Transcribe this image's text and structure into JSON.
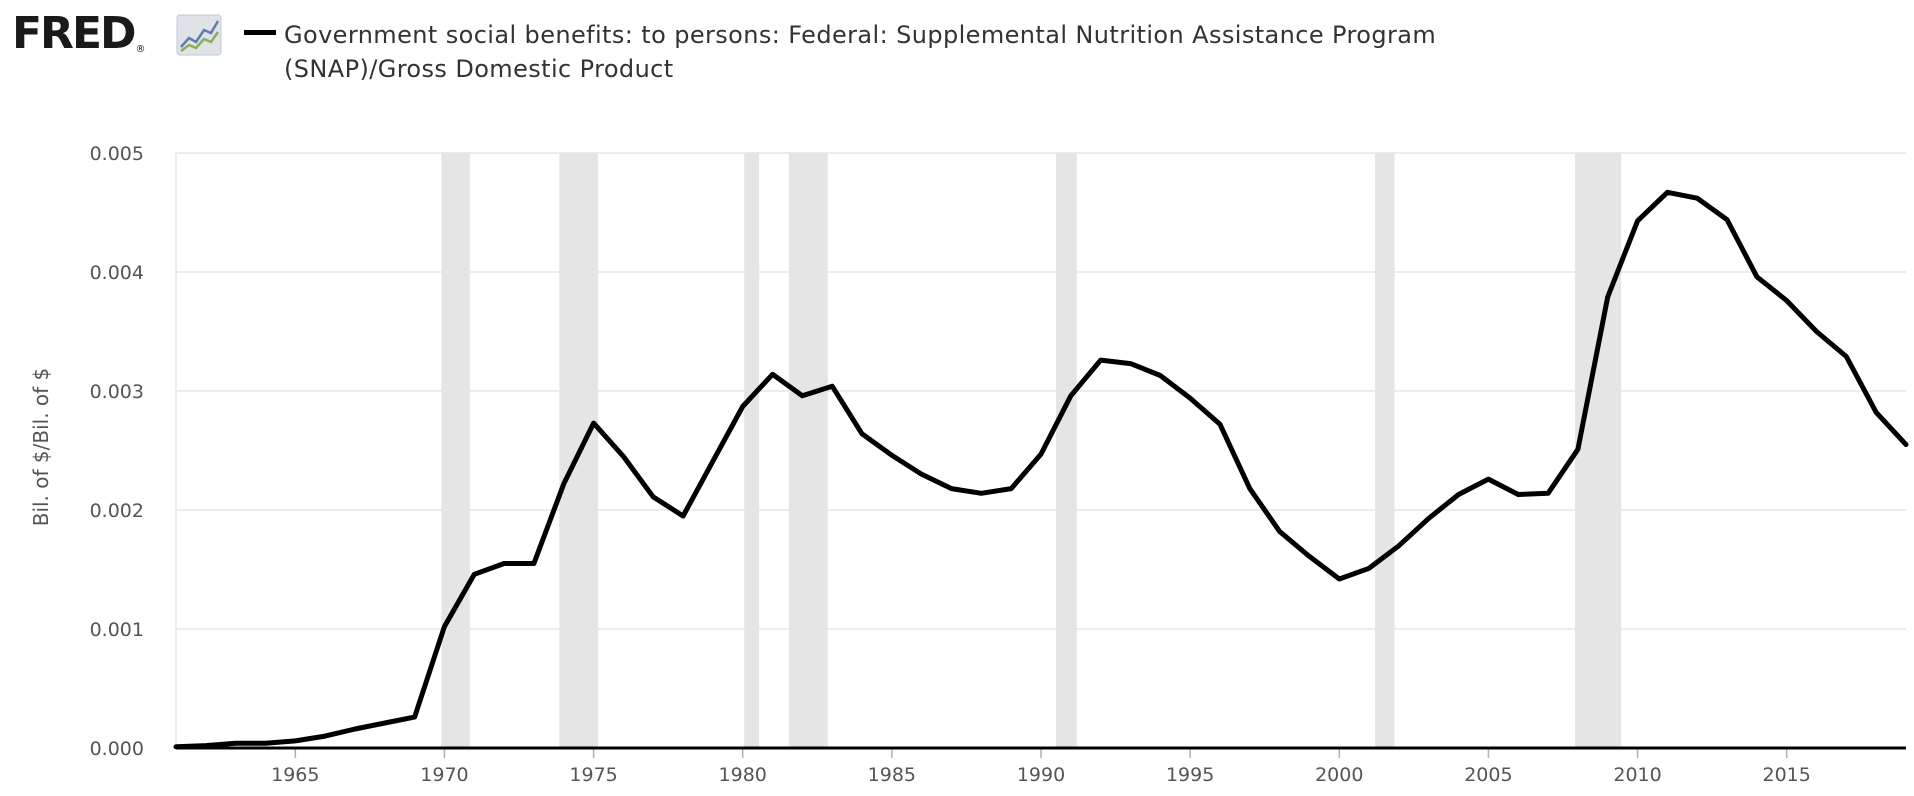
{
  "brand": {
    "name": "FRED",
    "registered": "®",
    "icon": "fred-chart-icon"
  },
  "colors": {
    "series": "#000000",
    "recession": "#e5e5e5",
    "grid": "#e6e6e6",
    "axis": "#000000",
    "text": "#555555"
  },
  "chart_data": {
    "type": "line",
    "title": "Government social benefits: to persons: Federal: Supplemental Nutrition Assistance Program (SNAP)/Gross Domestic Product",
    "xlabel": "",
    "ylabel": "Bil. of $/Bil. of $",
    "xlim": [
      1961,
      2019
    ],
    "ylim": [
      0,
      0.005
    ],
    "yticks": [
      0,
      0.001,
      0.002,
      0.003,
      0.004,
      0.005
    ],
    "yticklabels": [
      "0.000",
      "0.001",
      "0.002",
      "0.003",
      "0.004",
      "0.005"
    ],
    "xticks": [
      1965,
      1970,
      1975,
      1980,
      1985,
      1990,
      1995,
      2000,
      2005,
      2010,
      2015
    ],
    "xticklabels": [
      "1965",
      "1970",
      "1975",
      "1980",
      "1985",
      "1990",
      "1995",
      "2000",
      "2005",
      "2010",
      "2015"
    ],
    "grid": true,
    "legend": "top-left",
    "recessions": [
      [
        1969.9,
        1970.85
      ],
      [
        1973.85,
        1975.15
      ],
      [
        1980.05,
        1980.55
      ],
      [
        1981.55,
        1982.85
      ],
      [
        1990.5,
        1991.2
      ],
      [
        2001.2,
        2001.85
      ],
      [
        2007.9,
        2009.45
      ]
    ],
    "series": [
      {
        "name": "Government social benefits: to persons: Federal: Supplemental Nutrition Assistance Program (SNAP)/Gross Domestic Product",
        "x": [
          1961,
          1962,
          1963,
          1964,
          1965,
          1966,
          1967,
          1968,
          1969,
          1970,
          1971,
          1972,
          1973,
          1974,
          1975,
          1976,
          1977,
          1978,
          1979,
          1980,
          1981,
          1982,
          1983,
          1984,
          1985,
          1986,
          1987,
          1988,
          1989,
          1990,
          1991,
          1992,
          1993,
          1994,
          1995,
          1996,
          1997,
          1998,
          1999,
          2000,
          2001,
          2002,
          2003,
          2004,
          2005,
          2006,
          2007,
          2008,
          2009,
          2010,
          2011,
          2012,
          2013,
          2014,
          2015,
          2016,
          2017,
          2018,
          2019
        ],
        "y": [
          1e-05,
          2e-05,
          4e-05,
          4e-05,
          6e-05,
          0.0001,
          0.00016,
          0.00021,
          0.00026,
          0.00102,
          0.00146,
          0.00155,
          0.00155,
          0.00222,
          0.00273,
          0.00245,
          0.00211,
          0.00195,
          0.00241,
          0.00287,
          0.00314,
          0.00296,
          0.00304,
          0.00264,
          0.00246,
          0.0023,
          0.00218,
          0.00214,
          0.00218,
          0.00247,
          0.00296,
          0.00326,
          0.00323,
          0.00313,
          0.00294,
          0.00272,
          0.00218,
          0.00182,
          0.00161,
          0.00142,
          0.00151,
          0.0017,
          0.00193,
          0.00213,
          0.00226,
          0.00213,
          0.00214,
          0.00251,
          0.00379,
          0.00443,
          0.00467,
          0.00462,
          0.00444,
          0.00396,
          0.00376,
          0.0035,
          0.00329,
          0.00282,
          0.00255
        ]
      }
    ]
  }
}
